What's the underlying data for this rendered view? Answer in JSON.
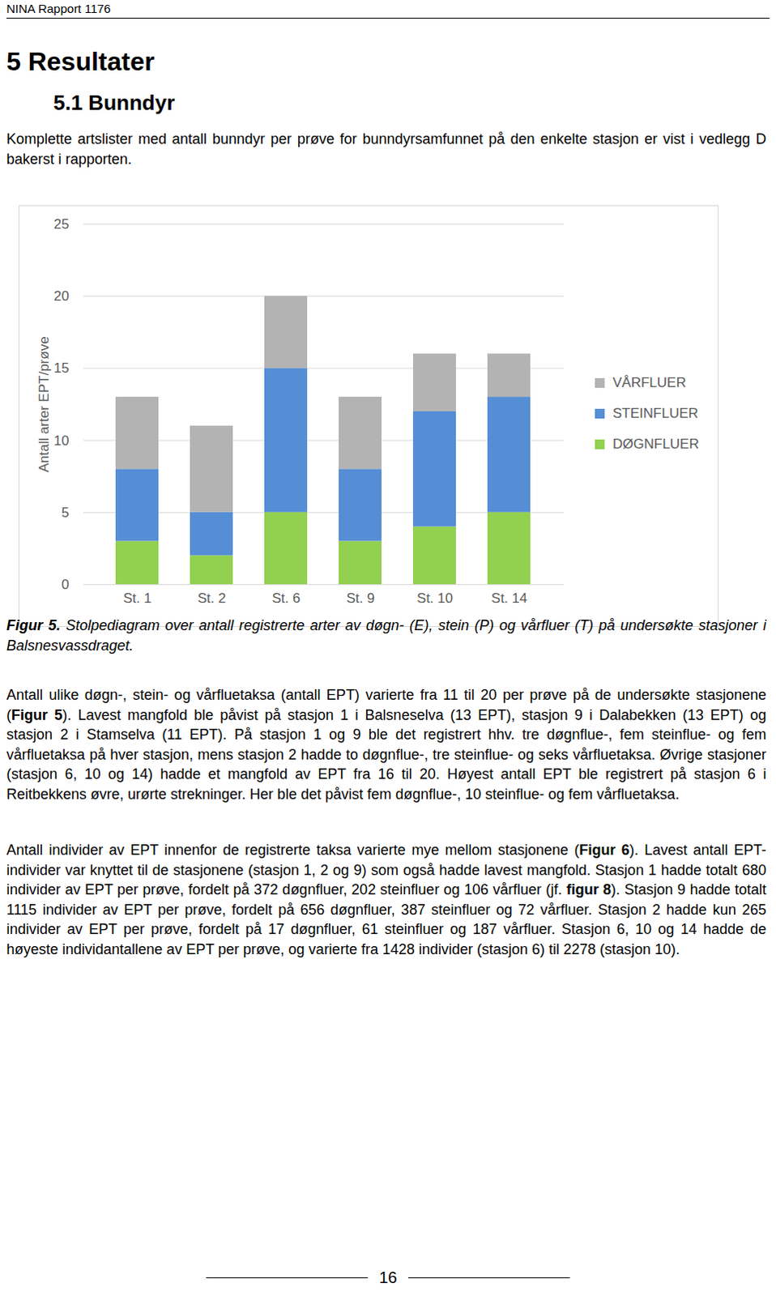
{
  "header": {
    "title": "NINA Rapport 1176"
  },
  "heading": "5 Resultater",
  "subheading": "5.1 Bunndyr",
  "intro": "Komplette artslister med antall bunndyr per prøve for bunndyrsamfunnet på den enkelte stasjon er vist i vedlegg D bakerst i rapporten.",
  "chart_data": {
    "type": "bar",
    "stacked": true,
    "categories": [
      "St. 1",
      "St. 2",
      "St. 6",
      "St. 9",
      "St. 10",
      "St. 14"
    ],
    "series": [
      {
        "name": "DØGNFLUER",
        "color": "#92d050",
        "values": [
          3,
          2,
          5,
          3,
          4,
          5
        ]
      },
      {
        "name": "STEINFLUER",
        "color": "#558ed5",
        "values": [
          5,
          3,
          10,
          5,
          8,
          8
        ]
      },
      {
        "name": "VÅRFLUER",
        "color": "#b3b3b3",
        "values": [
          5,
          6,
          5,
          5,
          4,
          3
        ]
      }
    ],
    "y_label": "Antall arter EPT/prøve",
    "ylim": [
      0,
      25
    ],
    "yticks": [
      0,
      5,
      10,
      15,
      20,
      25
    ],
    "grid": true,
    "legend": "right"
  },
  "caption": {
    "label": "Figur 5.",
    "text": "Stolpediagram over antall registrerte arter av døgn- (E), stein (P) og vårfluer (T) på undersøkte stasjoner i Balsnesvassdraget."
  },
  "paragraphs": [
    [
      "Antall ulike døgn-, stein- og vårfluetaksa (antall EPT) varierte fra 11 til 20 per prøve på de undersøkte stasjonene (",
      {
        "bold": "Figur 5"
      },
      "). Lavest mangfold ble påvist på stasjon 1 i Balsneselva (13 EPT), stasjon 9 i Dalabekken (13 EPT) og stasjon 2 i Stamselva (11 EPT). På stasjon 1 og 9 ble det registrert hhv. tre døgnflue-, fem steinflue- og fem vårfluetaksa på hver stasjon, mens stasjon 2 hadde to døgnflue-, tre steinflue- og seks vårfluetaksa. Øvrige stasjoner (stasjon 6, 10 og 14) hadde et mangfold av EPT fra 16 til 20. Høyest antall EPT ble registrert på stasjon 6 i Reitbekkens øvre, urørte strekninger. Her ble det påvist fem døgnflue-, 10 steinflue- og fem vårfluetaksa."
    ],
    [
      "Antall individer av EPT innenfor de registrerte taksa varierte mye mellom stasjonene (",
      {
        "bold": "Figur 6"
      },
      "). Lavest antall EPT-individer var knyttet til de stasjonene (stasjon 1, 2 og 9) som også hadde lavest mangfold. Stasjon 1 hadde totalt 680 individer av EPT per prøve, fordelt på 372 døgnfluer, 202 steinfluer og 106 vårfluer (jf. ",
      {
        "bold": "figur 8"
      },
      "). Stasjon 9 hadde totalt 1115 individer av EPT per prøve, fordelt på 656 døgnfluer, 387 steinfluer og 72 vårfluer. Stasjon 2 hadde kun 265 individer av EPT per prøve, fordelt på 17 døgnfluer, 61 steinfluer og 187 vårfluer. Stasjon 6, 10 og 14 hadde de høyeste individantallene av EPT per prøve, og varierte fra 1428 individer (stasjon 6) til 2278 (stasjon 10)."
    ]
  ],
  "page_number": 16
}
